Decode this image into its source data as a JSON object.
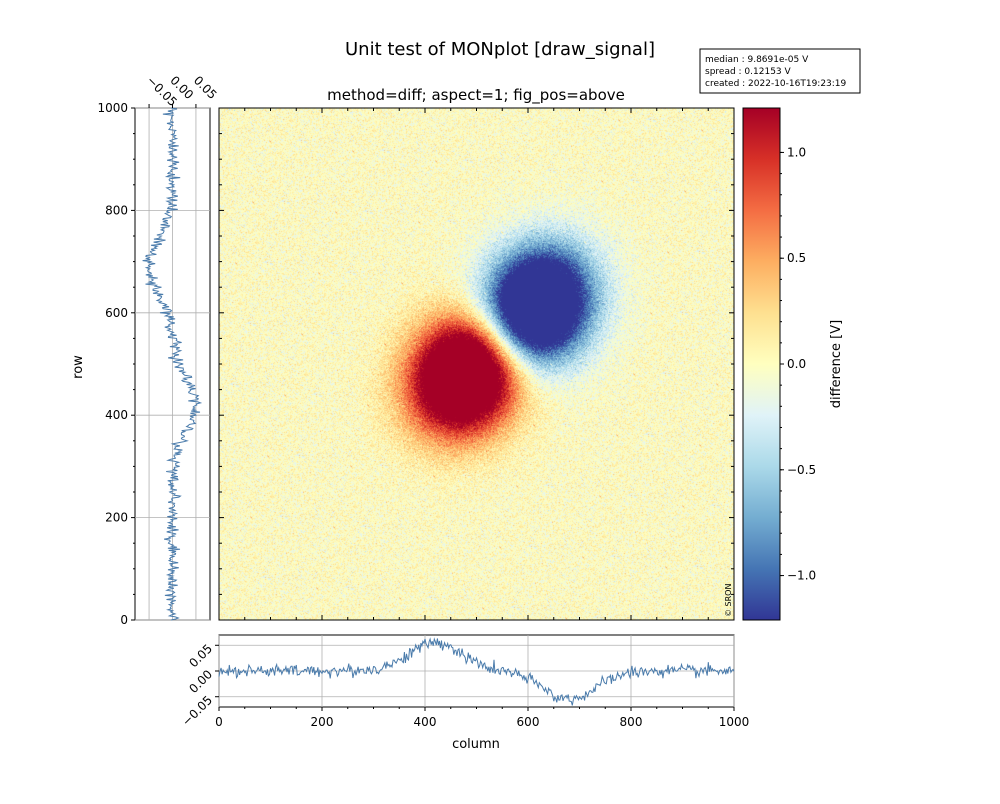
{
  "figure": {
    "title": "Unit test of MONplot [draw_signal]",
    "subtitle": "method=diff; aspect=1; fig_pos=above",
    "info_box": {
      "median": "median : 9.8691e-05 V",
      "spread": "spread : 0.12153 V",
      "created": "created : 2022-10-16T19:23:19"
    },
    "copyright": "© SRON"
  },
  "chart_data": [
    {
      "name": "image",
      "type": "heatmap",
      "xlim": [
        0,
        1000
      ],
      "ylim": [
        0,
        1000
      ],
      "x_ticks": [
        "0",
        "200",
        "400",
        "600",
        "800",
        "1000"
      ],
      "y_ticks": [
        "0",
        "200",
        "400",
        "600",
        "800",
        "1000"
      ],
      "blobs": [
        {
          "x": 480,
          "y": 480,
          "value": 1.2
        },
        {
          "x": 615,
          "y": 610,
          "value": -1.2
        }
      ],
      "noise": 0.12
    },
    {
      "name": "colorbar",
      "type": "colorbar",
      "label": "difference [V]",
      "vlim": [
        -1.21,
        1.21
      ],
      "ticks": [
        {
          "value": 1.0,
          "label": "1.0"
        },
        {
          "value": 0.5,
          "label": "0.5"
        },
        {
          "value": 0.0,
          "label": "0.0"
        },
        {
          "value": -0.5,
          "label": "−0.5"
        },
        {
          "value": -1.0,
          "label": "−1.0"
        }
      ],
      "colors": [
        "#313695",
        "#4575b4",
        "#74add1",
        "#abd9e9",
        "#e0f3f8",
        "#ffffbf",
        "#fee090",
        "#fdae61",
        "#f46d43",
        "#d73027",
        "#a50026"
      ]
    },
    {
      "name": "row-profile",
      "type": "line",
      "ylabel": "row",
      "ylim": [
        0,
        1000
      ],
      "xlim": [
        -0.08,
        0.08
      ],
      "x_ticks": [
        "−0.05",
        "0.00",
        "0.05"
      ],
      "y_ticks": [
        "0",
        "200",
        "400",
        "600",
        "800",
        "1000"
      ],
      "color": "#4a7bab",
      "noise": 0.007,
      "peaks": [
        {
          "center": 420,
          "amp": 0.05,
          "width": 60
        },
        {
          "center": 690,
          "amp": -0.05,
          "width": 60
        }
      ]
    },
    {
      "name": "column-profile",
      "type": "line",
      "xlabel": "column",
      "xlim": [
        0,
        1000
      ],
      "ylim": [
        -0.07,
        0.07
      ],
      "x_ticks": [
        "0",
        "200",
        "400",
        "600",
        "800",
        "1000"
      ],
      "y_ticks": [
        "0.05",
        "0.00",
        "−0.05"
      ],
      "color": "#4a7bab",
      "noise": 0.006,
      "peaks": [
        {
          "center": 420,
          "amp": 0.055,
          "width": 60
        },
        {
          "center": 680,
          "amp": -0.055,
          "width": 60
        }
      ]
    }
  ]
}
